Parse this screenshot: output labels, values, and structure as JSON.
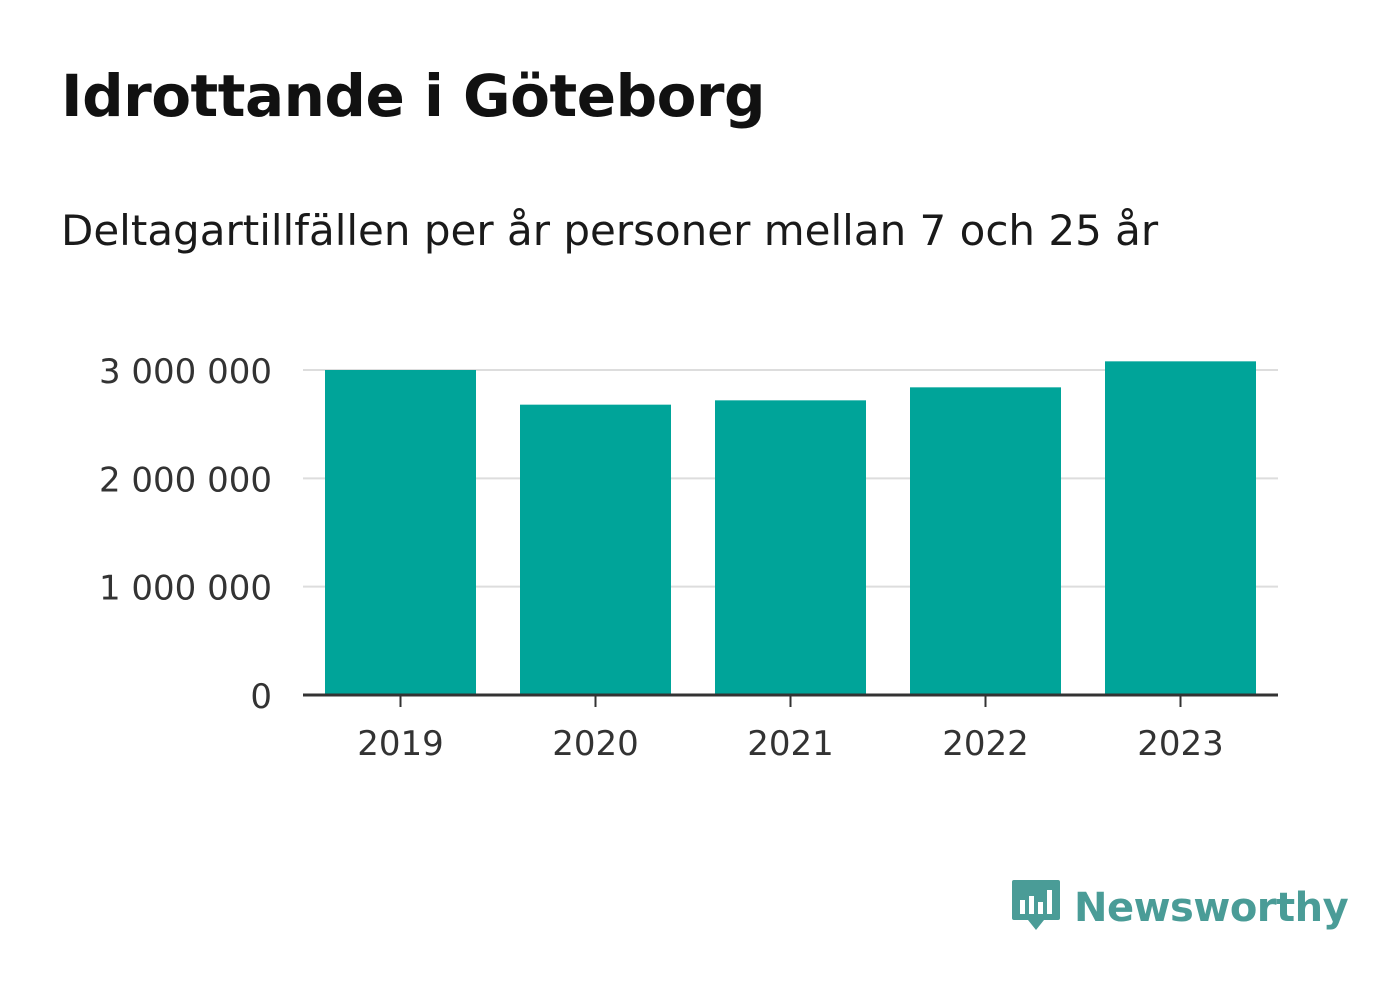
{
  "header": {
    "title": "Idrottande i Göteborg",
    "subtitle": "Deltagartillfällen per år personer mellan 7 och 25 år"
  },
  "brand": {
    "name": "Newsworthy",
    "icon": "newsworthy-logo-icon",
    "color": "#4a9c97"
  },
  "colors": {
    "bar": "#00a499",
    "grid": "#dddddd",
    "axis": "#333333",
    "tick_text": "#333333"
  },
  "chart_data": {
    "type": "bar",
    "categories": [
      "2019",
      "2020",
      "2021",
      "2022",
      "2023"
    ],
    "values": [
      3000000,
      2680000,
      2720000,
      2840000,
      3080000
    ],
    "ylim": [
      0,
      3000000
    ],
    "yticks": [
      0,
      1000000,
      2000000,
      3000000
    ],
    "ytick_labels": [
      "0",
      "1 000 000",
      "2 000 000",
      "3 000 000"
    ],
    "grid": true,
    "xlabel": "",
    "ylabel": ""
  }
}
